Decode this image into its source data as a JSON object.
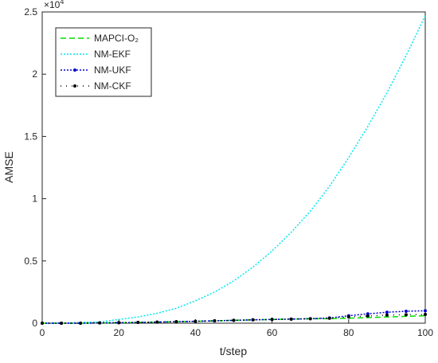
{
  "chart_data": {
    "type": "line",
    "xlabel": "t/step",
    "ylabel": "AMSE",
    "y_multiplier_base": "×10",
    "y_multiplier_power": "4",
    "x": [
      0,
      5,
      10,
      15,
      20,
      25,
      30,
      35,
      40,
      45,
      50,
      55,
      60,
      65,
      70,
      75,
      80,
      85,
      90,
      95,
      100
    ],
    "series": [
      {
        "name": "MAPCI-O₂",
        "color": "#00e000",
        "dash": "7,4",
        "marker": false,
        "values": [
          0,
          0,
          0,
          0.002,
          0.004,
          0.006,
          0.009,
          0.012,
          0.015,
          0.019,
          0.023,
          0.027,
          0.03,
          0.033,
          0.036,
          0.036,
          0.04,
          0.045,
          0.05,
          0.055,
          0.06
        ]
      },
      {
        "name": "NM-EKF",
        "color": "#00e8f0",
        "dash": "2,2",
        "marker": false,
        "values": [
          0,
          0,
          0.005,
          0.01,
          0.03,
          0.05,
          0.08,
          0.12,
          0.18,
          0.25,
          0.34,
          0.45,
          0.58,
          0.73,
          0.9,
          1.1,
          1.33,
          1.58,
          1.85,
          2.15,
          2.47
        ]
      },
      {
        "name": "NM-UKF",
        "color": "#0000d0",
        "dash": "2,2",
        "marker": true,
        "values": [
          0,
          0,
          0,
          0.002,
          0.004,
          0.006,
          0.009,
          0.012,
          0.015,
          0.019,
          0.023,
          0.027,
          0.03,
          0.033,
          0.036,
          0.042,
          0.06,
          0.075,
          0.088,
          0.096,
          0.1
        ]
      },
      {
        "name": "NM-CKF",
        "color": "#000000",
        "dash": "1,6",
        "marker": true,
        "values": [
          0,
          0,
          0,
          0.002,
          0.004,
          0.006,
          0.009,
          0.012,
          0.015,
          0.019,
          0.023,
          0.027,
          0.03,
          0.033,
          0.036,
          0.04,
          0.05,
          0.058,
          0.065,
          0.068,
          0.07
        ]
      }
    ],
    "xlim": [
      0,
      100
    ],
    "xticks": [
      0,
      20,
      40,
      60,
      80,
      100
    ],
    "ylim": [
      0,
      2.5
    ],
    "yticks": [
      0,
      0.5,
      1,
      1.5,
      2,
      2.5
    ],
    "grid": false,
    "legend": "top-left"
  }
}
